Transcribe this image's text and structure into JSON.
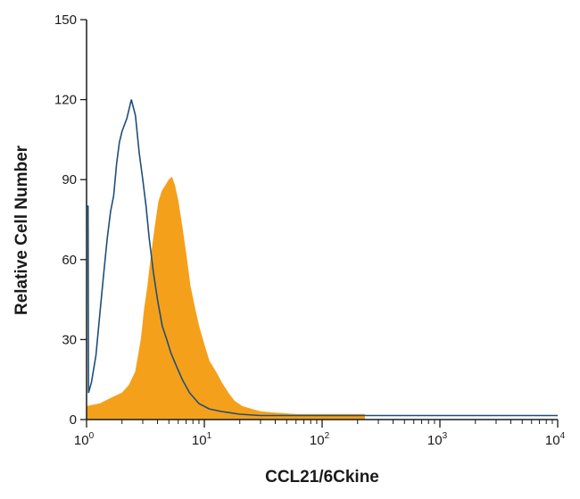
{
  "chart_data": {
    "type": "area",
    "title": "",
    "xlabel": "CCL21/6Ckine",
    "ylabel": "Relative Cell Number",
    "x_scale": "log",
    "xlim": [
      1,
      10000
    ],
    "ylim": [
      0,
      150
    ],
    "y_ticks": [
      0,
      30,
      60,
      90,
      120,
      150
    ],
    "x_ticks": [
      {
        "base": "10",
        "exp": "0"
      },
      {
        "base": "10",
        "exp": "1"
      },
      {
        "base": "10",
        "exp": "2"
      },
      {
        "base": "10",
        "exp": "3"
      },
      {
        "base": "10",
        "exp": "4"
      }
    ],
    "grid": false,
    "legend": "none",
    "series": [
      {
        "style": "outline",
        "color": "#1f4e79",
        "points": [
          [
            1.0,
            80
          ],
          [
            1.03,
            80
          ],
          [
            1.04,
            10
          ],
          [
            1.1,
            14
          ],
          [
            1.2,
            24
          ],
          [
            1.3,
            40
          ],
          [
            1.4,
            55
          ],
          [
            1.5,
            68
          ],
          [
            1.6,
            78
          ],
          [
            1.7,
            84
          ],
          [
            1.8,
            96
          ],
          [
            1.9,
            104
          ],
          [
            2.0,
            108
          ],
          [
            2.2,
            113
          ],
          [
            2.4,
            120
          ],
          [
            2.6,
            114
          ],
          [
            2.8,
            100
          ],
          [
            3.0,
            90
          ],
          [
            3.2,
            80
          ],
          [
            3.4,
            68
          ],
          [
            3.7,
            55
          ],
          [
            4.0,
            45
          ],
          [
            4.4,
            35
          ],
          [
            4.8,
            30
          ],
          [
            5.2,
            25
          ],
          [
            5.8,
            20
          ],
          [
            6.5,
            15
          ],
          [
            7.5,
            10
          ],
          [
            9.0,
            6
          ],
          [
            11,
            4
          ],
          [
            14,
            3
          ],
          [
            20,
            2
          ],
          [
            30,
            1.5
          ],
          [
            50,
            1.5
          ],
          [
            100,
            1.5
          ],
          [
            300,
            1.5
          ],
          [
            1000,
            1.5
          ],
          [
            3000,
            1.5
          ],
          [
            10000,
            1.5
          ]
        ]
      },
      {
        "style": "filled",
        "color": "#f5a01a",
        "points": [
          [
            1.0,
            5
          ],
          [
            1.3,
            6
          ],
          [
            1.6,
            8
          ],
          [
            2.0,
            10
          ],
          [
            2.3,
            13
          ],
          [
            2.6,
            18
          ],
          [
            2.9,
            30
          ],
          [
            3.1,
            42
          ],
          [
            3.3,
            50
          ],
          [
            3.5,
            60
          ],
          [
            3.8,
            72
          ],
          [
            4.1,
            82
          ],
          [
            4.4,
            86
          ],
          [
            4.7,
            88
          ],
          [
            5.0,
            90
          ],
          [
            5.3,
            91
          ],
          [
            5.6,
            88
          ],
          [
            6.0,
            82
          ],
          [
            6.5,
            72
          ],
          [
            7.0,
            62
          ],
          [
            7.6,
            50
          ],
          [
            8.3,
            42
          ],
          [
            9.0,
            35
          ],
          [
            10,
            28
          ],
          [
            11,
            22
          ],
          [
            12.5,
            18
          ],
          [
            14,
            14
          ],
          [
            16,
            10
          ],
          [
            18,
            7
          ],
          [
            21,
            5
          ],
          [
            25,
            4
          ],
          [
            30,
            3
          ],
          [
            40,
            2.5
          ],
          [
            60,
            2
          ],
          [
            100,
            2
          ],
          [
            230,
            2
          ]
        ]
      }
    ]
  }
}
